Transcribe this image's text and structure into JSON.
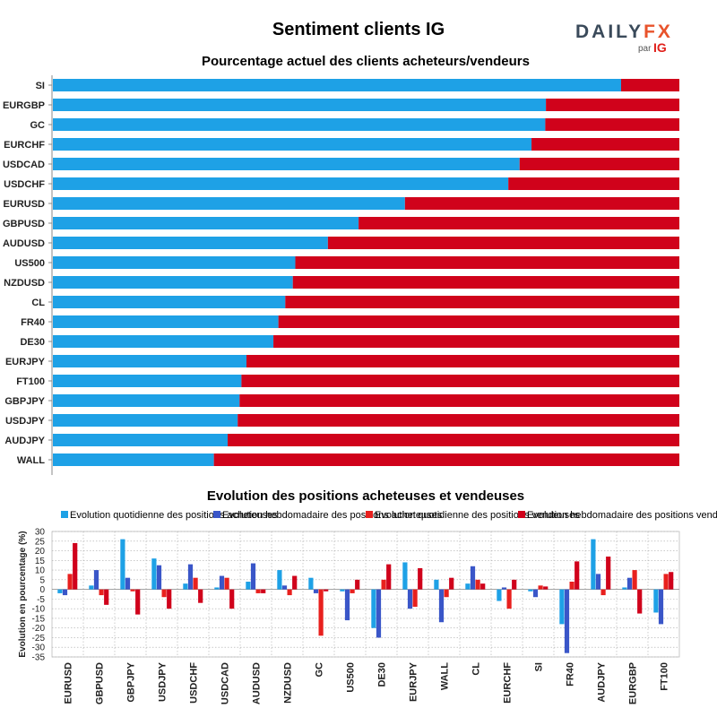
{
  "header": {
    "title": "Sentiment clients IG",
    "logo_text": "DAILYFX",
    "logo_par": "par",
    "logo_ig": "IG"
  },
  "colors": {
    "long_blue": "#1ea1e6",
    "short_red": "#d0021b",
    "daily_long": "#1ea1e6",
    "weekly_long": "#3a56c8",
    "daily_short": "#e8201e",
    "weekly_short": "#d0021b"
  },
  "chart_data": [
    {
      "type": "bar",
      "orientation": "horizontal",
      "stacked": true,
      "title": "Pourcentage actuel des clients acheteurs/vendeurs",
      "categories": [
        "SI",
        "EURGBP",
        "GC",
        "EURCHF",
        "USDCAD",
        "USDCHF",
        "EURUSD",
        "GBPUSD",
        "AUDUSD",
        "US500",
        "NZDUSD",
        "CL",
        "FR40",
        "DE30",
        "EURJPY",
        "FT100",
        "GBPJPY",
        "USDJPY",
        "AUDJPY",
        "WALL"
      ],
      "series": [
        {
          "values": [
            90.7,
            78.7,
            78.6,
            76.4,
            74.5,
            72.7,
            56.2,
            48.8,
            43.9,
            38.7,
            38.3,
            37.1,
            36.0,
            35.2,
            30.9,
            30.1,
            29.8,
            29.5,
            27.9,
            25.7
          ]
        },
        {
          "values": [
            9.3,
            21.3,
            21.4,
            23.6,
            25.5,
            27.3,
            43.8,
            51.2,
            56.1,
            61.3,
            61.7,
            62.9,
            64.0,
            64.8,
            69.1,
            69.9,
            70.2,
            70.5,
            72.1,
            74.3
          ]
        }
      ],
      "xlim": [
        0,
        100
      ]
    },
    {
      "type": "bar",
      "title": "Evolution des positions acheteuses et vendeuses",
      "ylabel": "Evolution en pourcentage (%)",
      "categories": [
        "EURUSD",
        "GBPUSD",
        "GBPJPY",
        "USDJPY",
        "USDCHF",
        "USDCAD",
        "AUDUSD",
        "NZDUSD",
        "GC",
        "US500",
        "DE30",
        "EURJPY",
        "WALL",
        "CL",
        "EURCHF",
        "SI",
        "FR40",
        "AUDJPY",
        "EURGBP",
        "FT100"
      ],
      "ylim": [
        -35,
        30
      ],
      "yticks": [
        30,
        25,
        20,
        15,
        10,
        5,
        0,
        -5,
        -10,
        -15,
        -20,
        -25,
        -30,
        -35
      ],
      "series": [
        {
          "name": "Evolution quotidienne des positions acheteuses",
          "values": [
            -2,
            2,
            26,
            16,
            3,
            1,
            4,
            10,
            6,
            -1,
            -20,
            14,
            5,
            3,
            -6,
            -1,
            -18,
            26,
            1,
            -12
          ]
        },
        {
          "name": "Evolution hebdomadaire des positions acheteuses",
          "values": [
            -3,
            10,
            6,
            12.5,
            13,
            7,
            13.5,
            2,
            -2,
            -16,
            -25,
            -10,
            -17,
            12,
            1,
            -4,
            -33,
            8,
            6,
            -18
          ]
        },
        {
          "name": "Evolution quotidienne des positions vendeuses",
          "values": [
            8,
            -3,
            -1,
            -4,
            6,
            6,
            -2,
            -3,
            -24,
            -2,
            5,
            -9,
            -4,
            5,
            -10,
            2,
            4,
            -3,
            10,
            8
          ]
        },
        {
          "name": "Evolution hebdomadaire des positions vendeuses",
          "values": [
            24,
            -8,
            -13,
            -10,
            -7,
            -10,
            -2,
            7,
            -1,
            5,
            13,
            11,
            6,
            3,
            5,
            1.5,
            14.5,
            17,
            -12.5,
            9
          ]
        }
      ]
    }
  ]
}
